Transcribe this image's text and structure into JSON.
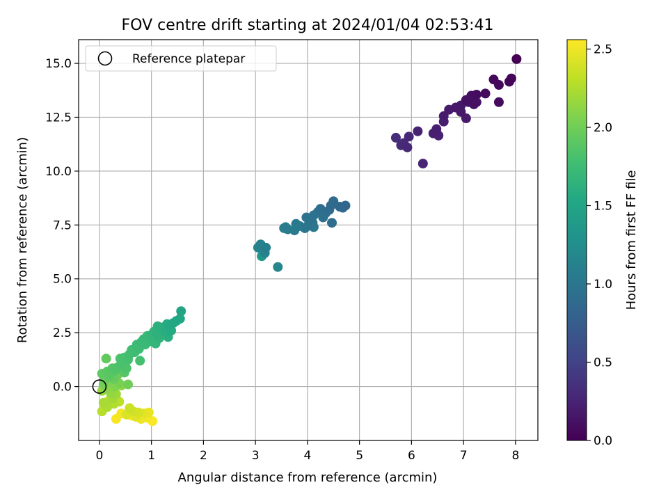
{
  "chart_data": {
    "type": "scatter",
    "title": "FOV centre drift starting at 2024/01/04 02:53:41",
    "xlabel": "Angular distance from reference (arcmin)",
    "ylabel": "Rotation from reference (arcmin)",
    "xlim": [
      -0.4,
      8.43
    ],
    "ylim": [
      -2.5,
      16.1
    ],
    "xticks": [
      0,
      1,
      2,
      3,
      4,
      5,
      6,
      7,
      8
    ],
    "xtick_labels": [
      "0",
      "1",
      "2",
      "3",
      "4",
      "5",
      "6",
      "7",
      "8"
    ],
    "yticks": [
      0,
      2.5,
      5,
      7.5,
      10,
      12.5,
      15
    ],
    "ytick_labels": [
      "0.0",
      "2.5",
      "5.0",
      "7.5",
      "10.0",
      "12.5",
      "15.0"
    ],
    "grid": true,
    "legend": {
      "position": "upper-left",
      "entries": [
        {
          "label": "Reference platepar",
          "marker": "open-circle",
          "x": 0,
          "y": 0
        }
      ]
    },
    "colorbar": {
      "label": "Hours from first FF file",
      "colormap": "viridis",
      "range": [
        0,
        2.56
      ],
      "ticks": [
        0,
        0.5,
        1,
        1.5,
        2,
        2.5
      ],
      "tick_labels": [
        "0.0",
        "0.5",
        "1.0",
        "1.5",
        "2.0",
        "2.5"
      ]
    },
    "series": [
      {
        "name": "",
        "points": [
          [
            8.02,
            15.2,
            0.0
          ],
          [
            7.92,
            14.3,
            0.02
          ],
          [
            7.88,
            14.15,
            0.03
          ],
          [
            7.58,
            14.25,
            0.05
          ],
          [
            7.68,
            14.0,
            0.06
          ],
          [
            7.68,
            13.2,
            0.07
          ],
          [
            7.42,
            13.6,
            0.08
          ],
          [
            7.25,
            13.55,
            0.09
          ],
          [
            7.15,
            13.5,
            0.1
          ],
          [
            7.05,
            13.3,
            0.11
          ],
          [
            7.2,
            13.1,
            0.12
          ],
          [
            7.25,
            13.2,
            0.13
          ],
          [
            7.1,
            13.2,
            0.14
          ],
          [
            6.95,
            13.05,
            0.15
          ],
          [
            6.85,
            12.95,
            0.16
          ],
          [
            6.95,
            12.75,
            0.17
          ],
          [
            7.05,
            12.45,
            0.18
          ],
          [
            6.72,
            12.85,
            0.19
          ],
          [
            6.62,
            12.55,
            0.2
          ],
          [
            6.62,
            12.3,
            0.21
          ],
          [
            6.48,
            11.95,
            0.22
          ],
          [
            6.42,
            11.75,
            0.23
          ],
          [
            6.52,
            11.65,
            0.24
          ],
          [
            6.12,
            11.85,
            0.25
          ],
          [
            6.22,
            10.35,
            0.26
          ],
          [
            5.95,
            11.6,
            0.28
          ],
          [
            5.92,
            11.1,
            0.29
          ],
          [
            5.85,
            11.3,
            0.3
          ],
          [
            5.8,
            11.2,
            0.31
          ],
          [
            5.7,
            11.55,
            0.32
          ],
          [
            4.73,
            8.4,
            0.85
          ],
          [
            4.68,
            8.3,
            0.86
          ],
          [
            4.62,
            8.35,
            0.87
          ],
          [
            4.5,
            8.6,
            0.88
          ],
          [
            4.45,
            8.4,
            0.89
          ],
          [
            4.42,
            8.2,
            0.9
          ],
          [
            4.47,
            7.6,
            0.91
          ],
          [
            4.35,
            8.05,
            0.92
          ],
          [
            4.25,
            8.25,
            0.93
          ],
          [
            4.2,
            8.1,
            0.94
          ],
          [
            4.3,
            7.85,
            0.95
          ],
          [
            4.12,
            7.95,
            0.96
          ],
          [
            4.05,
            7.75,
            0.97
          ],
          [
            3.98,
            7.85,
            0.98
          ],
          [
            4.1,
            7.6,
            0.99
          ],
          [
            4.0,
            7.45,
            1.0
          ],
          [
            3.95,
            7.35,
            1.01
          ],
          [
            4.12,
            7.4,
            1.02
          ],
          [
            3.85,
            7.45,
            1.03
          ],
          [
            3.78,
            7.55,
            1.04
          ],
          [
            3.75,
            7.25,
            1.05
          ],
          [
            3.62,
            7.3,
            1.06
          ],
          [
            3.58,
            7.4,
            1.07
          ],
          [
            3.55,
            7.35,
            1.08
          ],
          [
            3.2,
            6.45,
            1.1
          ],
          [
            3.1,
            6.6,
            1.12
          ],
          [
            3.18,
            6.2,
            1.14
          ],
          [
            3.05,
            6.45,
            1.15
          ],
          [
            3.43,
            5.55,
            1.17
          ],
          [
            3.12,
            6.05,
            1.35
          ],
          [
            1.57,
            3.5,
            1.5
          ],
          [
            1.55,
            3.15,
            1.52
          ],
          [
            1.48,
            3.05,
            1.53
          ],
          [
            1.42,
            2.95,
            1.54
          ],
          [
            1.35,
            2.85,
            1.55
          ],
          [
            1.38,
            2.6,
            1.56
          ],
          [
            1.3,
            2.9,
            1.57
          ],
          [
            1.28,
            2.55,
            1.58
          ],
          [
            1.32,
            2.3,
            1.6
          ],
          [
            1.22,
            2.75,
            1.61
          ],
          [
            1.18,
            2.6,
            1.62
          ],
          [
            1.12,
            2.8,
            1.63
          ],
          [
            1.1,
            2.45,
            1.64
          ],
          [
            1.15,
            2.25,
            1.65
          ],
          [
            1.05,
            2.55,
            1.66
          ],
          [
            1.0,
            2.4,
            1.67
          ],
          [
            1.08,
            2.0,
            1.68
          ],
          [
            0.98,
            2.1,
            1.69
          ],
          [
            0.92,
            2.35,
            1.7
          ],
          [
            0.85,
            2.2,
            1.71
          ],
          [
            0.8,
            2.05,
            1.72
          ],
          [
            0.88,
            1.95,
            1.73
          ],
          [
            0.76,
            1.75,
            1.74
          ],
          [
            0.72,
            1.95,
            1.75
          ],
          [
            0.68,
            1.6,
            1.76
          ],
          [
            0.62,
            1.7,
            1.77
          ],
          [
            0.58,
            1.5,
            1.78
          ],
          [
            0.78,
            1.2,
            1.79
          ],
          [
            0.55,
            1.25,
            1.8
          ],
          [
            0.48,
            1.35,
            1.81
          ],
          [
            0.42,
            1.05,
            1.82
          ],
          [
            0.4,
            1.3,
            1.83
          ],
          [
            0.52,
            0.85,
            1.84
          ],
          [
            0.35,
            0.9,
            1.85
          ],
          [
            0.3,
            0.75,
            1.86
          ],
          [
            0.25,
            0.85,
            1.87
          ],
          [
            0.48,
            0.65,
            1.88
          ],
          [
            0.2,
            0.6,
            1.89
          ],
          [
            0.15,
            0.7,
            1.9
          ],
          [
            0.18,
            0.45,
            1.91
          ],
          [
            0.05,
            0.6,
            1.92
          ],
          [
            0.13,
            1.3,
            1.93
          ],
          [
            0.22,
            0.5,
            1.95
          ],
          [
            0.28,
            0.35,
            1.96
          ],
          [
            0.1,
            0.3,
            1.97
          ],
          [
            0.35,
            0.55,
            1.98
          ],
          [
            0.55,
            0.1,
            2.0
          ],
          [
            0.08,
            0.1,
            2.02
          ],
          [
            0.38,
            0.15,
            2.04
          ],
          [
            0.2,
            0.25,
            2.06
          ],
          [
            0.3,
            0.0,
            2.08
          ],
          [
            0.12,
            -0.1,
            2.1
          ],
          [
            0.42,
            0.05,
            2.12
          ],
          [
            0.22,
            -0.3,
            2.14
          ],
          [
            0.05,
            -0.2,
            2.16
          ],
          [
            0.32,
            -0.35,
            2.18
          ],
          [
            0.25,
            -0.55,
            2.2
          ],
          [
            0.08,
            -0.75,
            2.22
          ],
          [
            0.15,
            -0.95,
            2.24
          ],
          [
            0.28,
            -0.8,
            2.26
          ],
          [
            0.05,
            -1.15,
            2.28
          ],
          [
            0.38,
            -0.7,
            2.3
          ],
          [
            0.2,
            -0.6,
            2.31
          ],
          [
            0.58,
            -1.0,
            2.36
          ],
          [
            0.65,
            -1.15,
            2.38
          ],
          [
            0.75,
            -1.2,
            2.4
          ],
          [
            0.52,
            -1.3,
            2.42
          ],
          [
            0.7,
            -1.4,
            2.44
          ],
          [
            0.85,
            -1.25,
            2.46
          ],
          [
            0.95,
            -1.2,
            2.48
          ],
          [
            0.8,
            -1.5,
            2.5
          ],
          [
            0.92,
            -1.45,
            2.52
          ],
          [
            0.42,
            -1.25,
            2.53
          ],
          [
            0.32,
            -1.5,
            2.54
          ],
          [
            1.02,
            -1.6,
            2.55
          ],
          [
            0.62,
            -1.35,
            2.56
          ]
        ]
      }
    ]
  }
}
